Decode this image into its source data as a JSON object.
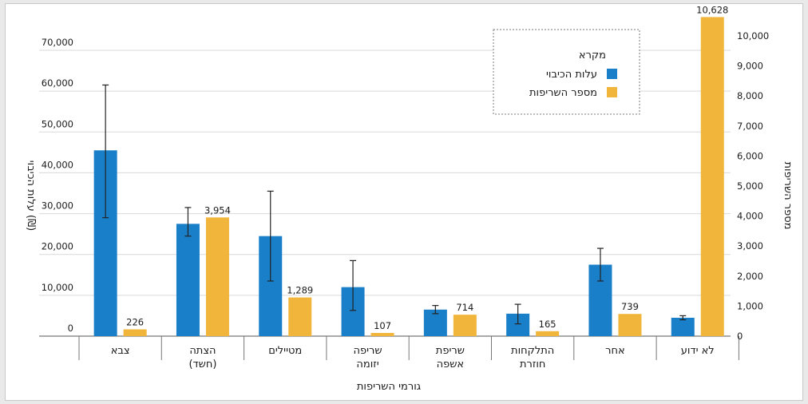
{
  "chart_data": {
    "type": "bar",
    "xlabel": "גורמי השריפות",
    "ylabel_left": "עלות הכיבוי (₪)",
    "ylabel_right": "מספר השריפות",
    "ylim_left": [
      0,
      70000
    ],
    "ylim_right": [
      0,
      10000
    ],
    "left_ticks": [
      "0",
      "10,000",
      "20,000",
      "30,000",
      "40,000",
      "50,000",
      "60,000",
      "70,000"
    ],
    "right_ticks": [
      "0",
      "1,000",
      "2,000",
      "3,000",
      "4,000",
      "5,000",
      "6,000",
      "7,000",
      "8,000",
      "9,000",
      "10,000"
    ],
    "categories": [
      [
        "צבא"
      ],
      [
        "הצתה",
        "(חשד)"
      ],
      [
        "מטיילים"
      ],
      [
        "שריפה",
        "יזומה"
      ],
      [
        "שריפת",
        "אשפה"
      ],
      [
        "התלקחות",
        "חוזרת"
      ],
      [
        "אחר"
      ],
      [
        "לא ידוע"
      ]
    ],
    "legend": {
      "title": "מקרא",
      "position": "top-right",
      "items": [
        {
          "label": "עלות הכיבוי",
          "color": "#1a7fc9"
        },
        {
          "label": "מספר השריפות",
          "color": "#f0b53a"
        }
      ]
    },
    "series": [
      {
        "name": "עלות הכיבוי",
        "axis": "left",
        "color": "#1a7fc9",
        "values": [
          45500,
          27500,
          24500,
          12000,
          6500,
          5500,
          17500,
          4500
        ],
        "error_low": [
          29000,
          24500,
          13500,
          6300,
          5500,
          3000,
          13500,
          4000
        ],
        "error_high": [
          61500,
          31500,
          35500,
          18500,
          7500,
          7800,
          21500,
          5000
        ]
      },
      {
        "name": "מספר השריפות",
        "axis": "right",
        "color": "#f0b53a",
        "values": [
          226,
          3954,
          1289,
          107,
          714,
          165,
          739,
          10628
        ],
        "value_labels": [
          "226",
          "3,954",
          "1,289",
          "107",
          "714",
          "165",
          "739",
          "10,628"
        ]
      }
    ]
  }
}
